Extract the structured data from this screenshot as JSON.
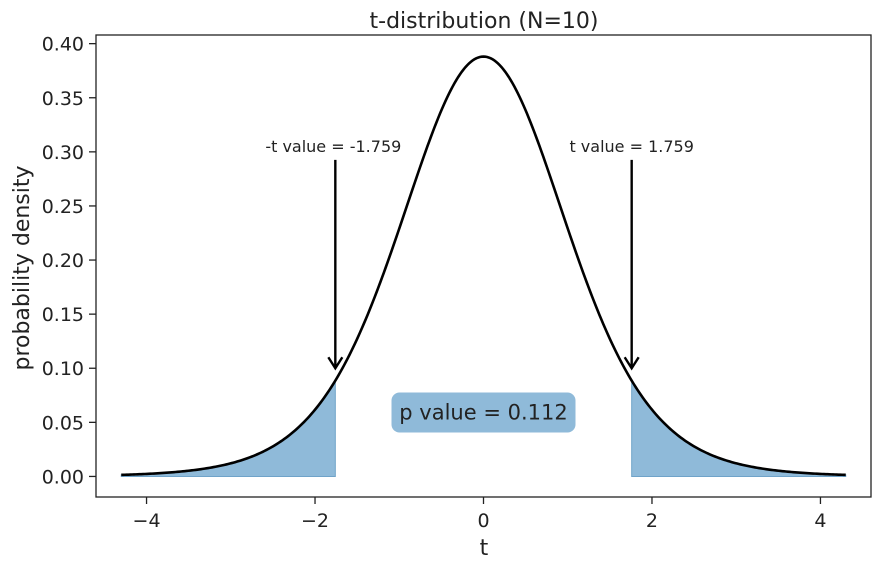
{
  "chart_data": {
    "type": "area",
    "title": "t-distribution (N=10)",
    "xlabel": "t",
    "ylabel": "probability density",
    "xlim": [
      -4.6,
      4.6
    ],
    "ylim": [
      -0.019,
      0.408
    ],
    "x_ticks": [
      -4,
      -2,
      0,
      2,
      4
    ],
    "x_tick_labels": [
      "−4",
      "−2",
      "0",
      "2",
      "4"
    ],
    "y_ticks": [
      0.0,
      0.05,
      0.1,
      0.15,
      0.2,
      0.25,
      0.3,
      0.35,
      0.4
    ],
    "y_tick_labels": [
      "0.00",
      "0.05",
      "0.10",
      "0.15",
      "0.20",
      "0.25",
      "0.30",
      "0.35",
      "0.40"
    ],
    "grid": false,
    "curve": {
      "distribution": "student-t",
      "df": 9,
      "x_range": [
        -4.3,
        4.3
      ],
      "color": "#000000"
    },
    "shaded_tails": {
      "left_upper_bound": -1.759,
      "right_lower_bound": 1.759,
      "color": "#8fbad9"
    },
    "annotations": {
      "left": {
        "text": "-t value = -1.759",
        "x": -1.759,
        "text_y": 0.3,
        "arrow_tip_y": 0.1
      },
      "right": {
        "text": "t value = 1.759",
        "x": 1.759,
        "text_y": 0.3,
        "arrow_tip_y": 0.1
      },
      "p_value": {
        "text": "p value = 0.112",
        "x": 0.0,
        "y": 0.06
      }
    }
  }
}
